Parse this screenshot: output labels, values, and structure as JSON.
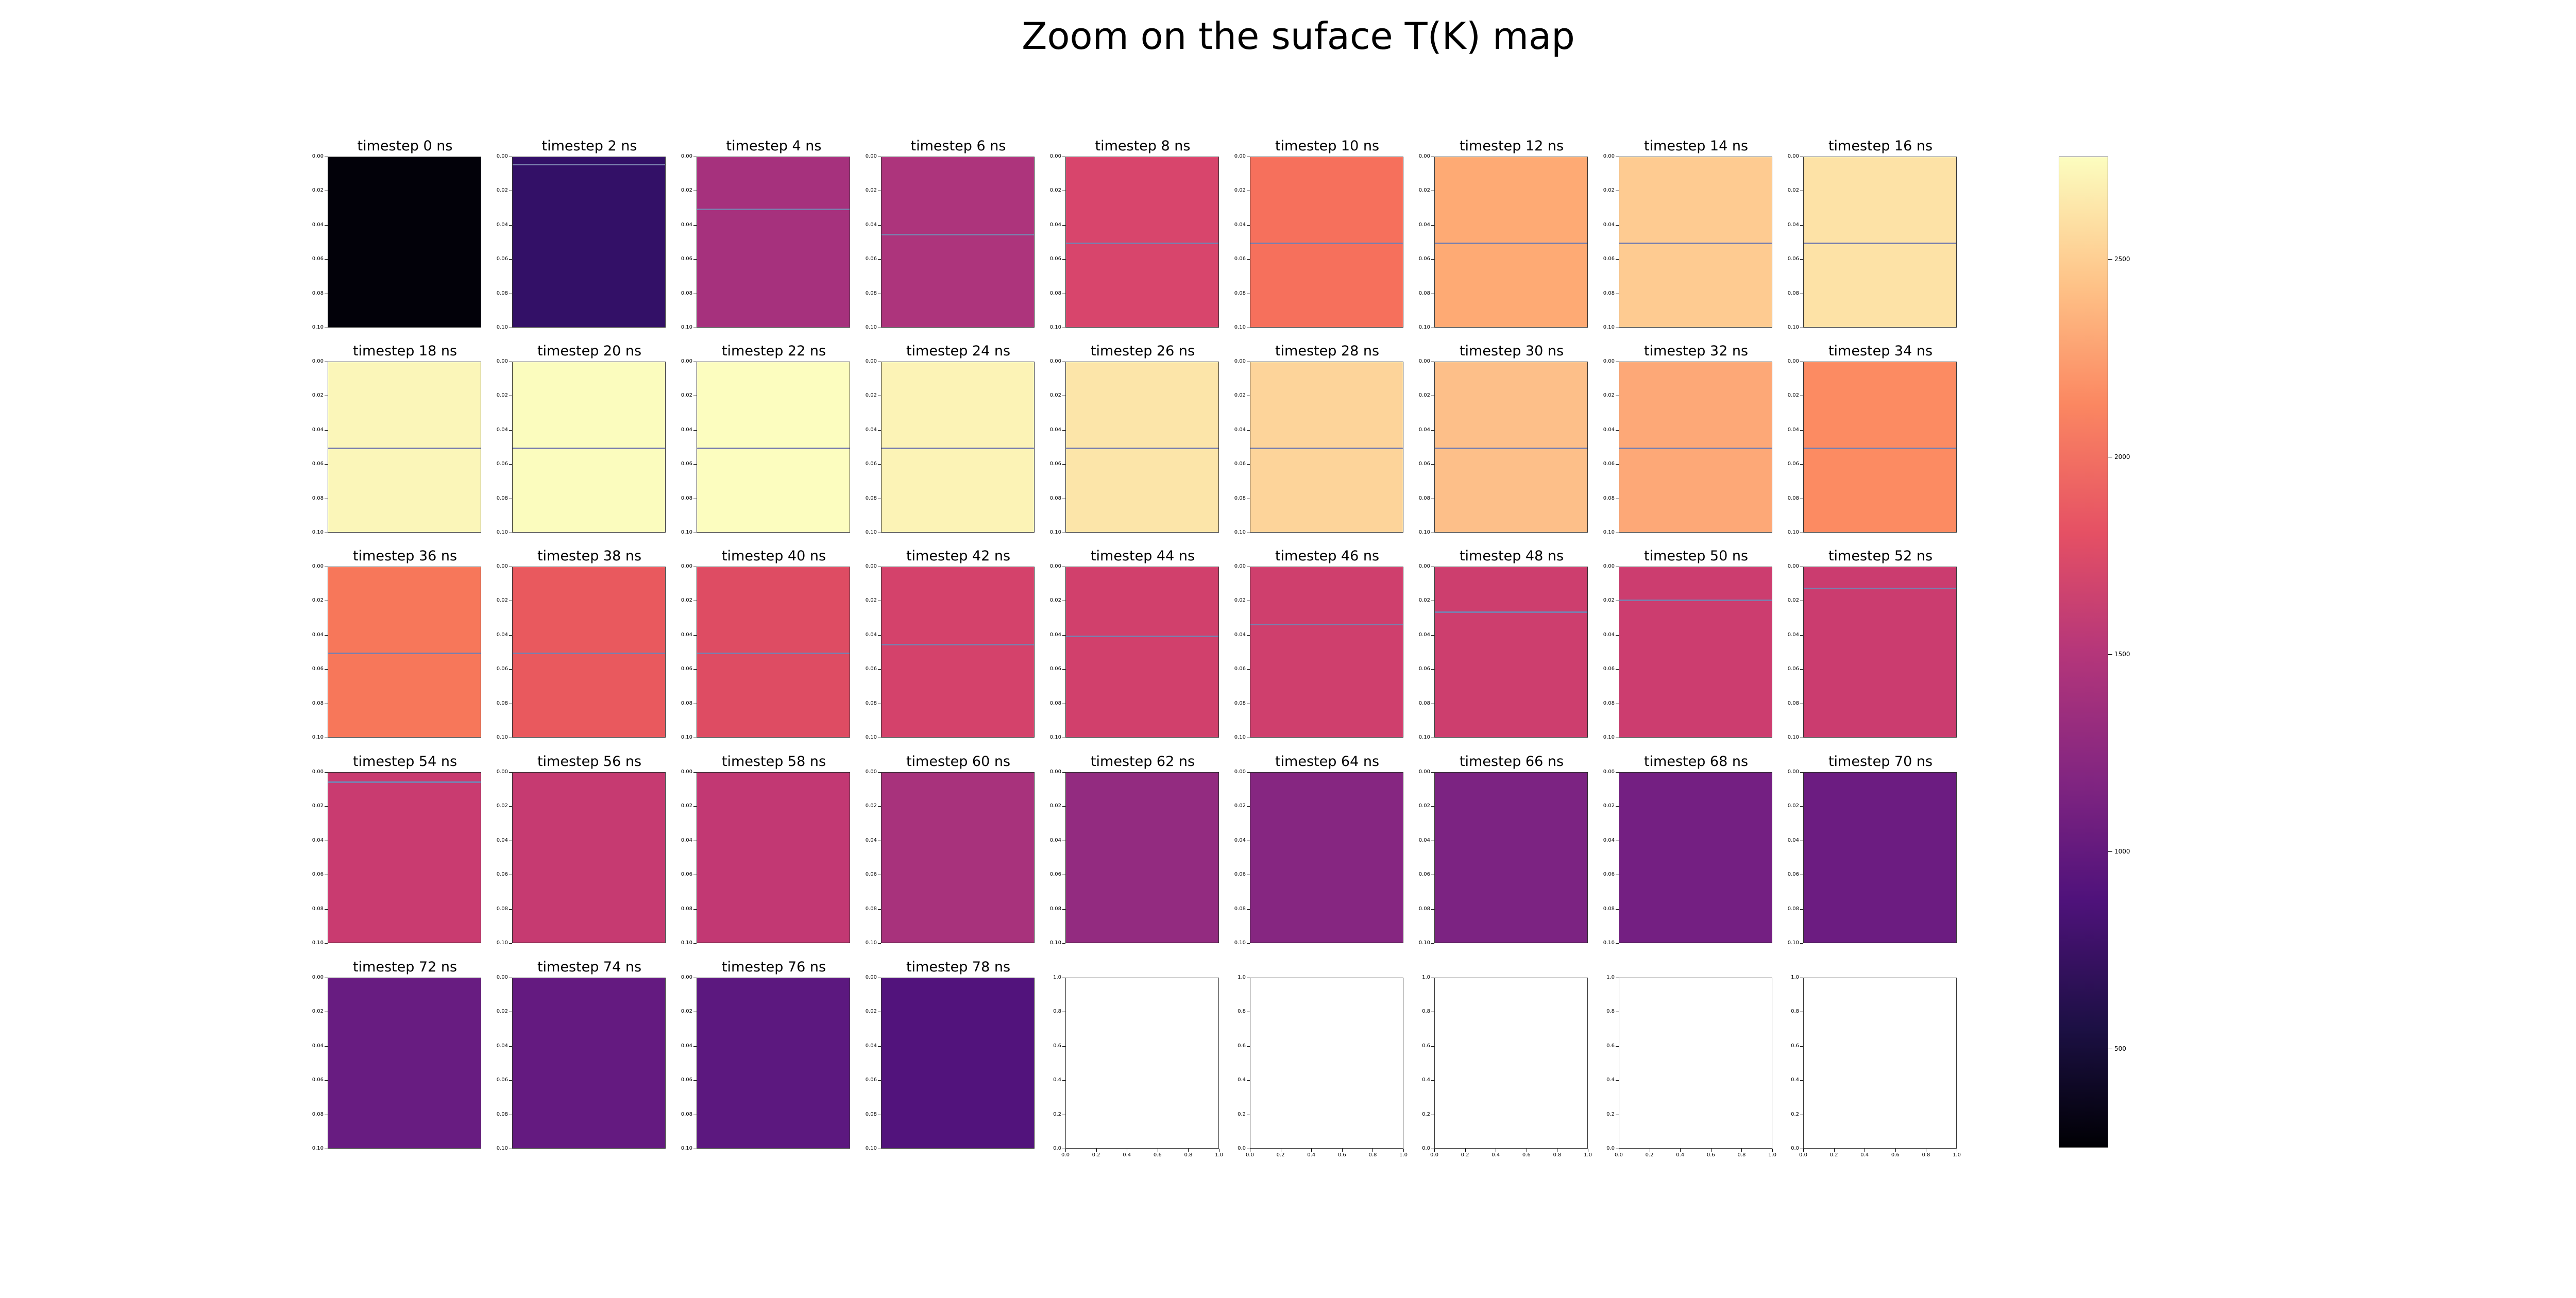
{
  "figure": {
    "title": "Zoom on the suface T(K) map"
  },
  "chart_data": {
    "type": "heatmap",
    "title": "Zoom on the suface T(K) map",
    "layout": {
      "rows": 5,
      "cols": 9
    },
    "colormap": "magma",
    "colorbar": {
      "range": [
        250,
        2760
      ],
      "ticks": [
        500,
        1000,
        1500,
        2000,
        2500
      ],
      "tick_labels": [
        "500",
        "1000",
        "1500",
        "2000",
        "2500"
      ]
    },
    "y_ticks": [
      "0.00",
      "0.02",
      "0.04",
      "0.06",
      "0.08",
      "0.10"
    ],
    "empty_x_ticks": [
      "0.0",
      "0.2",
      "0.4",
      "0.6",
      "0.8",
      "1.0"
    ],
    "empty_y_ticks": [
      "0.0",
      "0.2",
      "0.4",
      "0.6",
      "0.8",
      "1.0"
    ],
    "panels": [
      {
        "title": "timestep 0 ns",
        "color": "#020109",
        "interface_depth": null
      },
      {
        "title": "timestep 2 ns",
        "color": "#331067",
        "interface_depth": 0.004
      },
      {
        "title": "timestep 4 ns",
        "color": "#a6317d",
        "interface_depth": 0.03
      },
      {
        "title": "timestep 6 ns",
        "color": "#ad347c",
        "interface_depth": 0.045
      },
      {
        "title": "timestep 8 ns",
        "color": "#d8456c",
        "interface_depth": 0.05
      },
      {
        "title": "timestep 10 ns",
        "color": "#f6705c",
        "interface_depth": 0.05
      },
      {
        "title": "timestep 12 ns",
        "color": "#feaa74",
        "interface_depth": 0.05
      },
      {
        "title": "timestep 14 ns",
        "color": "#fecb91",
        "interface_depth": 0.05
      },
      {
        "title": "timestep 16 ns",
        "color": "#fde2a6",
        "interface_depth": 0.05
      },
      {
        "title": "timestep 18 ns",
        "color": "#fbf6b9",
        "interface_depth": 0.05
      },
      {
        "title": "timestep 20 ns",
        "color": "#fbfcbe",
        "interface_depth": 0.05
      },
      {
        "title": "timestep 22 ns",
        "color": "#fcfdbf",
        "interface_depth": 0.05
      },
      {
        "title": "timestep 24 ns",
        "color": "#fcf3b6",
        "interface_depth": 0.05
      },
      {
        "title": "timestep 26 ns",
        "color": "#fce5a9",
        "interface_depth": 0.05
      },
      {
        "title": "timestep 28 ns",
        "color": "#fdd49a",
        "interface_depth": 0.05
      },
      {
        "title": "timestep 30 ns",
        "color": "#fdbf89",
        "interface_depth": 0.05
      },
      {
        "title": "timestep 32 ns",
        "color": "#fda877",
        "interface_depth": 0.05
      },
      {
        "title": "timestep 34 ns",
        "color": "#fc8b62",
        "interface_depth": 0.05
      },
      {
        "title": "timestep 36 ns",
        "color": "#f7775a",
        "interface_depth": 0.05
      },
      {
        "title": "timestep 38 ns",
        "color": "#e9595e",
        "interface_depth": 0.05
      },
      {
        "title": "timestep 40 ns",
        "color": "#de4c63",
        "interface_depth": 0.05
      },
      {
        "title": "timestep 42 ns",
        "color": "#d4426b",
        "interface_depth": 0.045
      },
      {
        "title": "timestep 44 ns",
        "color": "#d1406c",
        "interface_depth": 0.04
      },
      {
        "title": "timestep 46 ns",
        "color": "#cf3f6d",
        "interface_depth": 0.033
      },
      {
        "title": "timestep 48 ns",
        "color": "#cd3e6e",
        "interface_depth": 0.026
      },
      {
        "title": "timestep 50 ns",
        "color": "#cc3d6f",
        "interface_depth": 0.019
      },
      {
        "title": "timestep 52 ns",
        "color": "#cb3c6f",
        "interface_depth": 0.012
      },
      {
        "title": "timestep 54 ns",
        "color": "#c93b70",
        "interface_depth": 0.005
      },
      {
        "title": "timestep 56 ns",
        "color": "#c63a71",
        "interface_depth": null
      },
      {
        "title": "timestep 58 ns",
        "color": "#c23873",
        "interface_depth": null
      },
      {
        "title": "timestep 60 ns",
        "color": "#a8327c",
        "interface_depth": null
      },
      {
        "title": "timestep 62 ns",
        "color": "#932b80",
        "interface_depth": null
      },
      {
        "title": "timestep 64 ns",
        "color": "#862681",
        "interface_depth": null
      },
      {
        "title": "timestep 66 ns",
        "color": "#7c2382",
        "interface_depth": null
      },
      {
        "title": "timestep 68 ns",
        "color": "#741f82",
        "interface_depth": null
      },
      {
        "title": "timestep 70 ns",
        "color": "#6c1c81",
        "interface_depth": null
      },
      {
        "title": "timestep 72 ns",
        "color": "#681c81",
        "interface_depth": null
      },
      {
        "title": "timestep 74 ns",
        "color": "#641a80",
        "interface_depth": null
      },
      {
        "title": "timestep 76 ns",
        "color": "#5c187f",
        "interface_depth": null
      },
      {
        "title": "timestep 78 ns",
        "color": "#52137c",
        "interface_depth": null
      },
      {
        "title": "",
        "color": null,
        "interface_depth": null,
        "empty": true
      },
      {
        "title": "",
        "color": null,
        "interface_depth": null,
        "empty": true
      },
      {
        "title": "",
        "color": null,
        "interface_depth": null,
        "empty": true
      },
      {
        "title": "",
        "color": null,
        "interface_depth": null,
        "empty": true
      },
      {
        "title": "",
        "color": null,
        "interface_depth": null,
        "empty": true
      }
    ]
  }
}
